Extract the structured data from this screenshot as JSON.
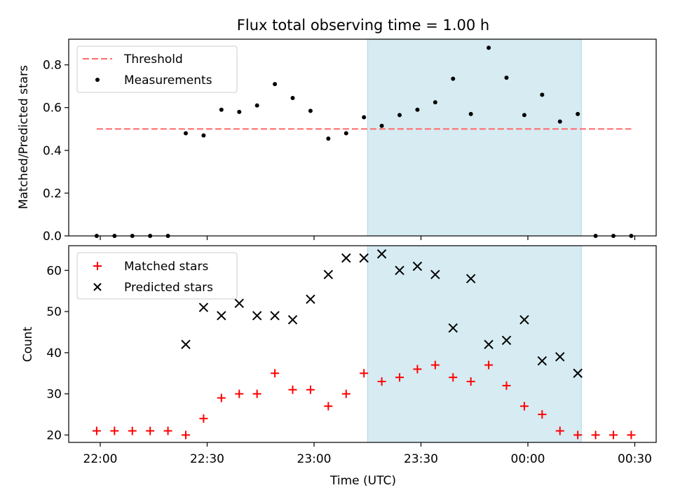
{
  "chart_data": [
    {
      "type": "scatter",
      "title": "Flux total observing time = 1.00 h",
      "xlabel": "",
      "ylabel": "Matched/Predicted stars",
      "ylim": [
        0,
        0.92
      ],
      "yticks": [
        "0.0",
        "0.2",
        "0.4",
        "0.6",
        "0.8"
      ],
      "highlight_span": {
        "start": "23:15",
        "end": "00:15",
        "color": "#add8e6"
      },
      "threshold": {
        "name": "Threshold",
        "value": 0.5,
        "x_start": "21:59",
        "x_end": "00:29",
        "color": "#ff6b6b"
      },
      "series": [
        {
          "name": "Measurements",
          "marker": "dot",
          "color": "#000000",
          "x": [
            "21:59",
            "22:04",
            "22:09",
            "22:14",
            "22:19",
            "22:24",
            "22:29",
            "22:34",
            "22:39",
            "22:44",
            "22:49",
            "22:54",
            "22:59",
            "23:04",
            "23:09",
            "23:14",
            "23:19",
            "23:24",
            "23:29",
            "23:34",
            "23:39",
            "23:44",
            "23:49",
            "23:54",
            "23:59",
            "00:04",
            "00:09",
            "00:14",
            "00:19",
            "00:24",
            "00:29"
          ],
          "y": [
            0,
            0,
            0,
            0,
            0,
            0.48,
            0.47,
            0.59,
            0.58,
            0.61,
            0.71,
            0.645,
            0.585,
            0.455,
            0.48,
            0.555,
            0.515,
            0.565,
            0.59,
            0.625,
            0.735,
            0.57,
            0.88,
            0.74,
            0.565,
            0.66,
            0.535,
            0.57,
            0,
            0,
            0
          ]
        }
      ],
      "legend_position": "upper-left"
    },
    {
      "type": "scatter",
      "title": "",
      "xlabel": "Time (UTC)",
      "ylabel": "Count",
      "ylim": [
        18.2,
        66
      ],
      "yticks": [
        "20",
        "30",
        "40",
        "50",
        "60"
      ],
      "xticks": [
        "22:00",
        "22:30",
        "23:00",
        "23:30",
        "00:00",
        "00:30"
      ],
      "highlight_span": {
        "start": "23:15",
        "end": "00:15",
        "color": "#add8e6"
      },
      "series": [
        {
          "name": "Matched stars",
          "marker": "plus",
          "color": "#ff0000",
          "x": [
            "21:59",
            "22:04",
            "22:09",
            "22:14",
            "22:19",
            "22:24",
            "22:29",
            "22:34",
            "22:39",
            "22:44",
            "22:49",
            "22:54",
            "22:59",
            "23:04",
            "23:09",
            "23:14",
            "23:19",
            "23:24",
            "23:29",
            "23:34",
            "23:39",
            "23:44",
            "23:49",
            "23:54",
            "23:59",
            "00:04",
            "00:09",
            "00:14",
            "00:19",
            "00:24",
            "00:29"
          ],
          "y": [
            21,
            21,
            21,
            21,
            21,
            20,
            24,
            29,
            30,
            30,
            35,
            31,
            31,
            27,
            30,
            35,
            33,
            34,
            36,
            37,
            34,
            33,
            37,
            32,
            27,
            25,
            21,
            20,
            20,
            20,
            20
          ]
        },
        {
          "name": "Predicted stars",
          "marker": "x",
          "color": "#000000",
          "x": [
            "22:24",
            "22:29",
            "22:34",
            "22:39",
            "22:44",
            "22:49",
            "22:54",
            "22:59",
            "23:04",
            "23:09",
            "23:14",
            "23:19",
            "23:24",
            "23:29",
            "23:34",
            "23:39",
            "23:44",
            "23:49",
            "23:54",
            "23:59",
            "00:04",
            "00:09",
            "00:14"
          ],
          "y": [
            42,
            51,
            49,
            52,
            49,
            49,
            48,
            53,
            59,
            63,
            63,
            64,
            60,
            61,
            59,
            46,
            58,
            42,
            43,
            48,
            38,
            39,
            35
          ]
        }
      ],
      "legend_position": "upper-left"
    }
  ]
}
